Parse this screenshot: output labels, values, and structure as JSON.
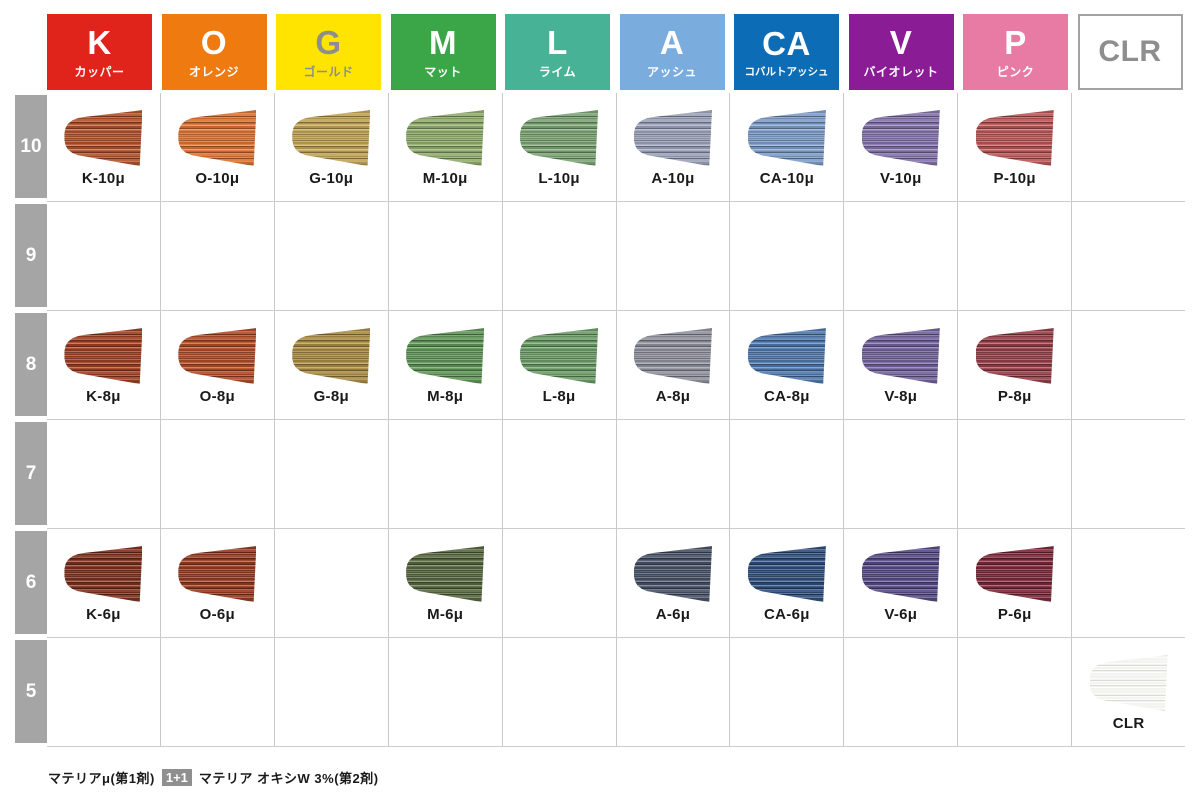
{
  "chart_title": "hair-color-swatch-chart",
  "columns": [
    {
      "code": "K",
      "name": "カッパー",
      "bg": "#e0231b",
      "fg": "#ffffff",
      "outlined": false
    },
    {
      "code": "O",
      "name": "オレンジ",
      "bg": "#ef7b10",
      "fg": "#ffffff",
      "outlined": false
    },
    {
      "code": "G",
      "name": "ゴールド",
      "bg": "#ffe400",
      "fg": "#8e8e8e",
      "outlined": false
    },
    {
      "code": "M",
      "name": "マット",
      "bg": "#3aa648",
      "fg": "#ffffff",
      "outlined": false
    },
    {
      "code": "L",
      "name": "ライム",
      "bg": "#47b295",
      "fg": "#ffffff",
      "outlined": false
    },
    {
      "code": "A",
      "name": "アッシュ",
      "bg": "#7aacdd",
      "fg": "#ffffff",
      "outlined": false
    },
    {
      "code": "CA",
      "name": "コバルトアッシュ",
      "bg": "#0c6cb5",
      "fg": "#ffffff",
      "outlined": false
    },
    {
      "code": "V",
      "name": "バイオレット",
      "bg": "#8a1d96",
      "fg": "#ffffff",
      "outlined": false
    },
    {
      "code": "P",
      "name": "ピンク",
      "bg": "#e87ba3",
      "fg": "#ffffff",
      "outlined": false
    },
    {
      "code": "CLR",
      "name": "",
      "bg": "#ffffff",
      "fg": "#8e8e8e",
      "outlined": true
    }
  ],
  "levels": [
    {
      "level": "10",
      "swatches": [
        {
          "label": "K-10μ",
          "color": "#b24f28"
        },
        {
          "label": "O-10μ",
          "color": "#dd7130"
        },
        {
          "label": "G-10μ",
          "color": "#c2a351"
        },
        {
          "label": "M-10μ",
          "color": "#8fab6a"
        },
        {
          "label": "L-10μ",
          "color": "#79a472"
        },
        {
          "label": "A-10μ",
          "color": "#9ba2ba"
        },
        {
          "label": "CA-10μ",
          "color": "#7b9cc8"
        },
        {
          "label": "V-10μ",
          "color": "#8271ab"
        },
        {
          "label": "P-10μ",
          "color": "#bb5353"
        },
        null
      ]
    },
    {
      "level": "9",
      "swatches": [
        null,
        null,
        null,
        null,
        null,
        null,
        null,
        null,
        null,
        null
      ]
    },
    {
      "level": "8",
      "swatches": [
        {
          "label": "K-8μ",
          "color": "#9f3d20"
        },
        {
          "label": "O-8μ",
          "color": "#b04a24"
        },
        {
          "label": "G-8μ",
          "color": "#a98a40"
        },
        {
          "label": "M-8μ",
          "color": "#5d9455"
        },
        {
          "label": "L-8μ",
          "color": "#6b9c66"
        },
        {
          "label": "A-8μ",
          "color": "#8f919d"
        },
        {
          "label": "CA-8μ",
          "color": "#4d77ad"
        },
        {
          "label": "V-8μ",
          "color": "#71619c"
        },
        {
          "label": "P-8μ",
          "color": "#943c45"
        },
        null
      ]
    },
    {
      "level": "7",
      "swatches": [
        null,
        null,
        null,
        null,
        null,
        null,
        null,
        null,
        null,
        null
      ]
    },
    {
      "level": "6",
      "swatches": [
        {
          "label": "K-6μ",
          "color": "#7d2e1a"
        },
        {
          "label": "O-6μ",
          "color": "#96381d"
        },
        null,
        {
          "label": "M-6μ",
          "color": "#55663c"
        },
        null,
        {
          "label": "A-6μ",
          "color": "#465066"
        },
        {
          "label": "CA-6μ",
          "color": "#2c4d7c"
        },
        {
          "label": "V-6μ",
          "color": "#564a85"
        },
        {
          "label": "P-6μ",
          "color": "#7c2637"
        },
        null
      ]
    },
    {
      "level": "5",
      "swatches": [
        null,
        null,
        null,
        null,
        null,
        null,
        null,
        null,
        null,
        {
          "label": "CLR",
          "color": "#f3f3ef",
          "light": true
        }
      ]
    }
  ],
  "footer": {
    "part1": "マテリアμ(第1剤)",
    "badge": "1+1",
    "part2": "マテリア オキシW 3%(第2剤)"
  },
  "chart_data": {
    "type": "table",
    "title": "マテリアμ color chart",
    "column_headers": [
      "K カッパー",
      "O オレンジ",
      "G ゴールド",
      "M マット",
      "L ライム",
      "A アッシュ",
      "CA コバルトアッシュ",
      "V バイオレット",
      "P ピンク",
      "CLR"
    ],
    "row_headers": [
      "10",
      "9",
      "8",
      "7",
      "6",
      "5"
    ],
    "cells": [
      [
        "K-10μ",
        "O-10μ",
        "G-10μ",
        "M-10μ",
        "L-10μ",
        "A-10μ",
        "CA-10μ",
        "V-10μ",
        "P-10μ",
        ""
      ],
      [
        "",
        "",
        "",
        "",
        "",
        "",
        "",
        "",
        "",
        ""
      ],
      [
        "K-8μ",
        "O-8μ",
        "G-8μ",
        "M-8μ",
        "L-8μ",
        "A-8μ",
        "CA-8μ",
        "V-8μ",
        "P-8μ",
        ""
      ],
      [
        "",
        "",
        "",
        "",
        "",
        "",
        "",
        "",
        "",
        ""
      ],
      [
        "K-6μ",
        "O-6μ",
        "",
        "M-6μ",
        "",
        "A-6μ",
        "CA-6μ",
        "V-6μ",
        "P-6μ",
        ""
      ],
      [
        "",
        "",
        "",
        "",
        "",
        "",
        "",
        "",
        "",
        "CLR"
      ]
    ],
    "legend_note": "マテリアμ(第1剤) 1+1 マテリア オキシW 3%(第2剤)"
  }
}
